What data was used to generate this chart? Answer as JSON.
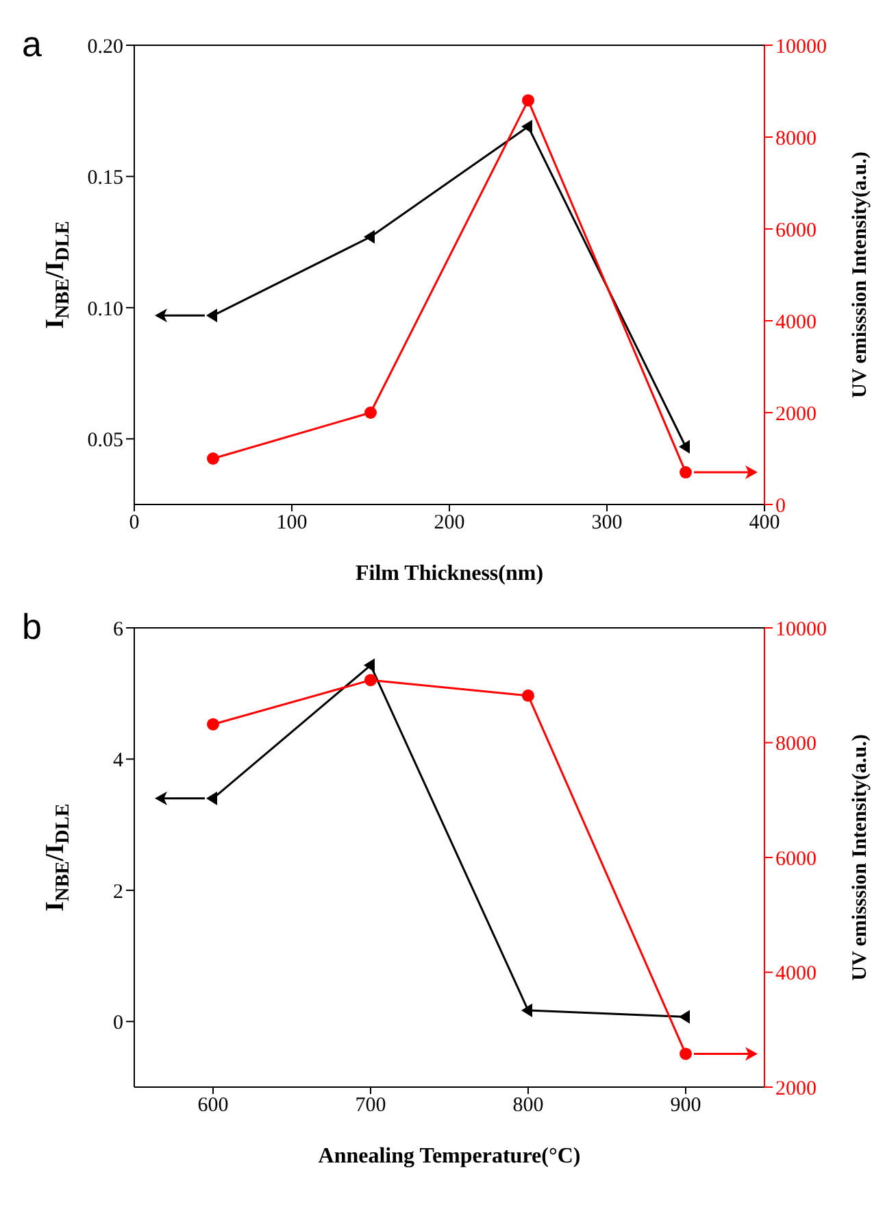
{
  "chart_data": [
    {
      "type": "line",
      "title": "a",
      "xlabel": "Film Thickness(nm)",
      "ylabel": "I$_{NBE}$/I$_{DLE}$",
      "y2label": "UV emisssion Intensity(a.u.)",
      "xlim": [
        0,
        400
      ],
      "xticks": [
        0,
        100,
        200,
        300,
        400
      ],
      "ylim": [
        0.025,
        0.2
      ],
      "yticks": [
        0.05,
        {
          "value": 0.1,
          "label": "0.10"
        },
        0.15,
        {
          "value": 0.2,
          "label": "0.20"
        }
      ],
      "y2lim": [
        0,
        10000
      ],
      "y2ticks": [
        0,
        2000,
        4000,
        6000,
        8000,
        10000
      ],
      "series": [
        {
          "color": "#000000",
          "marker": "triangle",
          "x": [
            50,
            150,
            250,
            350
          ],
          "values": [
            0.097,
            0.127,
            0.169,
            0.047
          ]
        },
        {
          "color": "#ff0000",
          "marker": "circle",
          "axis": "y2",
          "x": [
            50,
            150,
            250,
            350
          ],
          "values": [
            1000,
            2000,
            8800,
            700
          ]
        }
      ]
    },
    {
      "type": "line",
      "title": "b",
      "xlabel": "Annealing Temperature(°C)",
      "ylabel": "I$_{NBE}$/I$_{DLE}$",
      "y2label": "UV emisssion Intensity(a.u.)",
      "xlim": [
        550,
        950
      ],
      "xticks": [
        600,
        700,
        800,
        900
      ],
      "ylim": [
        -1,
        6
      ],
      "yticks": [
        0,
        2,
        4,
        6
      ],
      "y2lim": [
        2000,
        10000
      ],
      "y2ticks": [
        2000,
        4000,
        6000,
        8000,
        10000
      ],
      "series": [
        {
          "color": "#000000",
          "marker": "triangle",
          "x": [
            600,
            700,
            800,
            900
          ],
          "values": [
            3.4,
            5.43,
            0.17,
            0.07
          ]
        },
        {
          "color": "#ff0000",
          "marker": "circle",
          "axis": "y2",
          "x": [
            600,
            700,
            800,
            900
          ],
          "values": [
            8320,
            9090,
            8820,
            2580
          ]
        }
      ]
    }
  ]
}
